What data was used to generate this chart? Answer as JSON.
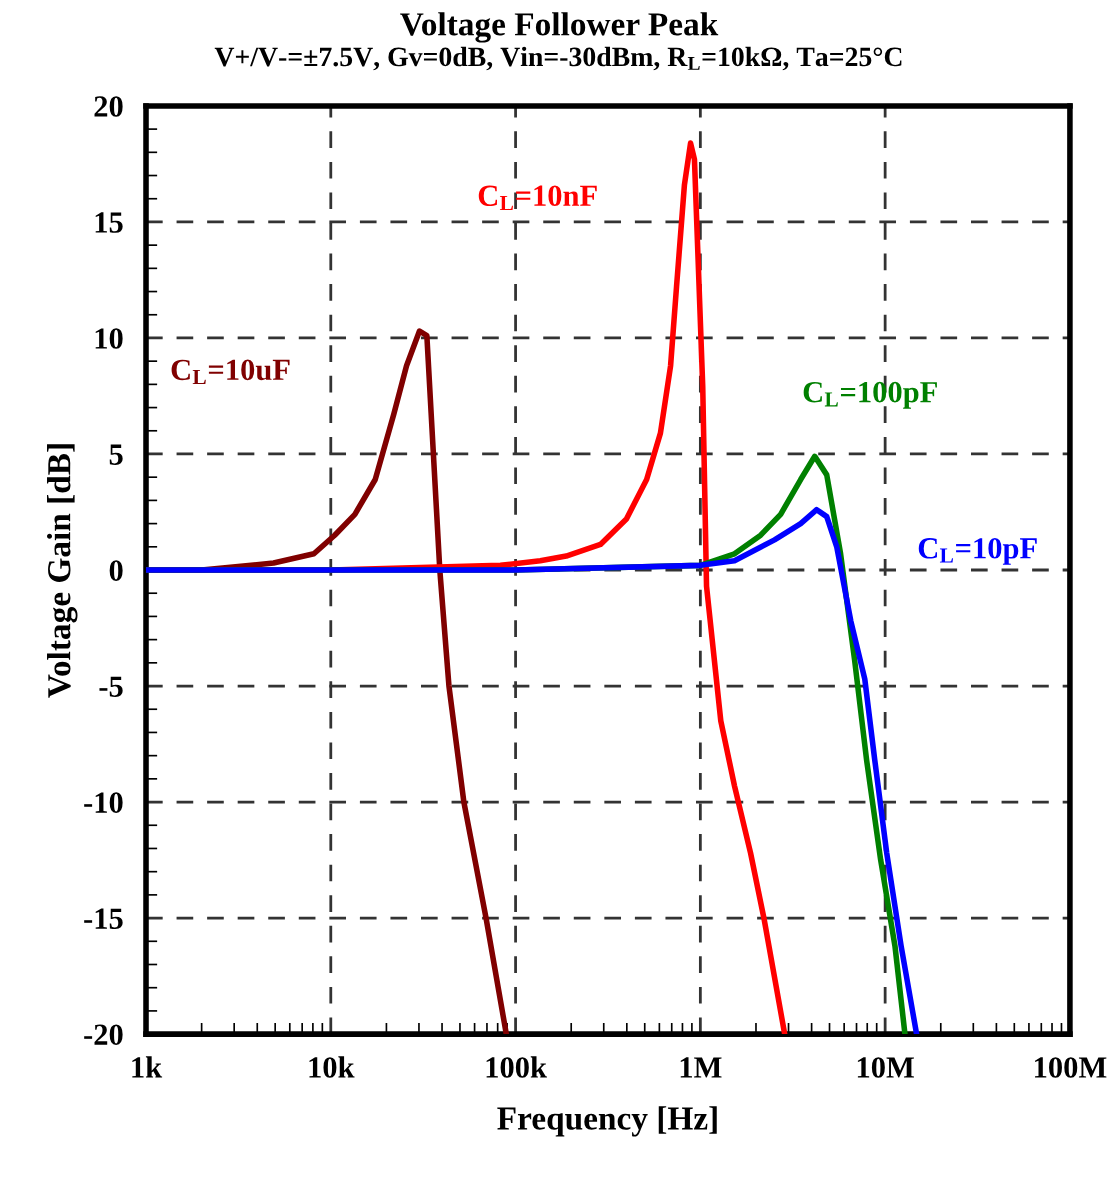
{
  "chart_data": {
    "type": "line",
    "title": "Voltage Follower Peak",
    "subtitle": "V+/V-=±7.5V, Gv=0dB, Vin=-30dBm, R$_{L}$=10kΩ, Ta=25°C",
    "xlabel": "Frequency [Hz]",
    "ylabel": "Voltage Gain [dB]",
    "log": "x",
    "grid": true,
    "legend": false,
    "marker": "none",
    "xlim": [
      1000,
      100000000
    ],
    "xticks": [
      {
        "value": 1000,
        "label": "1k"
      },
      {
        "value": 10000,
        "label": "10k"
      },
      {
        "value": 100000,
        "label": "100k"
      },
      {
        "value": 1000000,
        "label": "1M"
      },
      {
        "value": 10000000,
        "label": "10M"
      },
      {
        "value": 100000000,
        "label": "100M"
      }
    ],
    "ylim": [
      -20,
      20
    ],
    "yticks": [
      -20,
      -15,
      -10,
      -5,
      0,
      5,
      10,
      15,
      20
    ],
    "series": [
      {
        "name": "C$_{L}$=10uF",
        "color": "#800000",
        "x": [
          1000,
          2000,
          4900,
          8100,
          10500,
          13500,
          17400,
          21900,
          25700,
          30200,
          33100,
          38900,
          43600,
          52500,
          69200,
          89100
        ],
        "values": [
          0,
          0,
          0.3,
          0.7,
          1.5,
          2.4,
          3.9,
          6.7,
          8.8,
          10.3,
          10.1,
          0,
          -5,
          -10,
          -15,
          -20
        ]
      },
      {
        "name": "C$_{L}$=10nF",
        "color": "#ff0000",
        "x": [
          1000,
          10000,
          82800,
          136000,
          188000,
          288000,
          398000,
          512000,
          608000,
          690000,
          743000,
          820000,
          885000,
          929000,
          1030000,
          1080000,
          1290000,
          1530000,
          1870000,
          2220000,
          2860000
        ],
        "values": [
          0,
          0,
          0.2,
          0.4,
          0.6,
          1.1,
          2.2,
          3.9,
          5.9,
          8.8,
          12.2,
          16.6,
          18.4,
          17.7,
          7.9,
          -0.7,
          -6.5,
          -9.3,
          -12.2,
          -15.1,
          -20
        ]
      },
      {
        "name": "C$_{L}$=100pF",
        "color": "#008000",
        "x": [
          1000,
          100000,
          1000000,
          1530000,
          2120000,
          2720000,
          3490000,
          4160000,
          4830000,
          5740000,
          6840000,
          7940000,
          9460000,
          11300000,
          12800000
        ],
        "values": [
          0,
          0,
          0.2,
          0.7,
          1.5,
          2.4,
          3.9,
          4.9,
          4.1,
          0.7,
          -3.9,
          -8.2,
          -12.5,
          -16.2,
          -20
        ]
      },
      {
        "name": "C$_{L}$=10pF",
        "color": "#0000ff",
        "x": [
          1000,
          100000,
          1000000,
          1530000,
          2520000,
          3490000,
          4260000,
          4830000,
          5470000,
          6520000,
          7760000,
          8790000,
          10200000,
          12200000,
          14800000
        ],
        "values": [
          0,
          0,
          0.2,
          0.4,
          1.3,
          2.0,
          2.6,
          2.3,
          1.0,
          -2.2,
          -4.7,
          -8.2,
          -12.2,
          -16.2,
          -20
        ]
      }
    ]
  }
}
